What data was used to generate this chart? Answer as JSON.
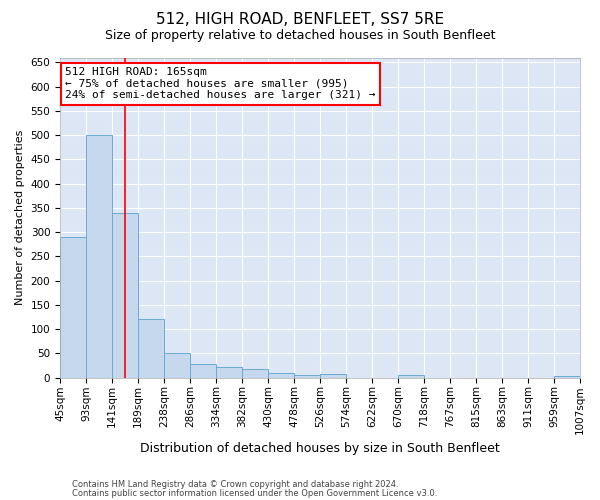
{
  "title": "512, HIGH ROAD, BENFLEET, SS7 5RE",
  "subtitle": "Size of property relative to detached houses in South Benfleet",
  "xlabel": "Distribution of detached houses by size in South Benfleet",
  "ylabel": "Number of detached properties",
  "footer1": "Contains HM Land Registry data © Crown copyright and database right 2024.",
  "footer2": "Contains public sector information licensed under the Open Government Licence v3.0.",
  "annotation_line1": "512 HIGH ROAD: 165sqm",
  "annotation_line2": "← 75% of detached houses are smaller (995)",
  "annotation_line3": "24% of semi-detached houses are larger (321) →",
  "bar_color": "#c5d8ee",
  "bar_edge_color": "#6aaad4",
  "red_line_x": 165,
  "bins": [
    45,
    93,
    141,
    189,
    238,
    286,
    334,
    382,
    430,
    478,
    526,
    574,
    622,
    670,
    718,
    767,
    815,
    863,
    911,
    959,
    1007
  ],
  "values": [
    290,
    500,
    340,
    120,
    50,
    28,
    22,
    18,
    10,
    5,
    8,
    0,
    0,
    5,
    0,
    0,
    0,
    0,
    0,
    4
  ],
  "ylim": [
    0,
    660
  ],
  "yticks": [
    0,
    50,
    100,
    150,
    200,
    250,
    300,
    350,
    400,
    450,
    500,
    550,
    600,
    650
  ],
  "background_color": "#dce6f5",
  "grid_color": "#ffffff",
  "fig_background": "#ffffff",
  "title_fontsize": 11,
  "subtitle_fontsize": 9,
  "xlabel_fontsize": 9,
  "ylabel_fontsize": 8,
  "tick_fontsize": 7.5,
  "annotation_fontsize": 8
}
